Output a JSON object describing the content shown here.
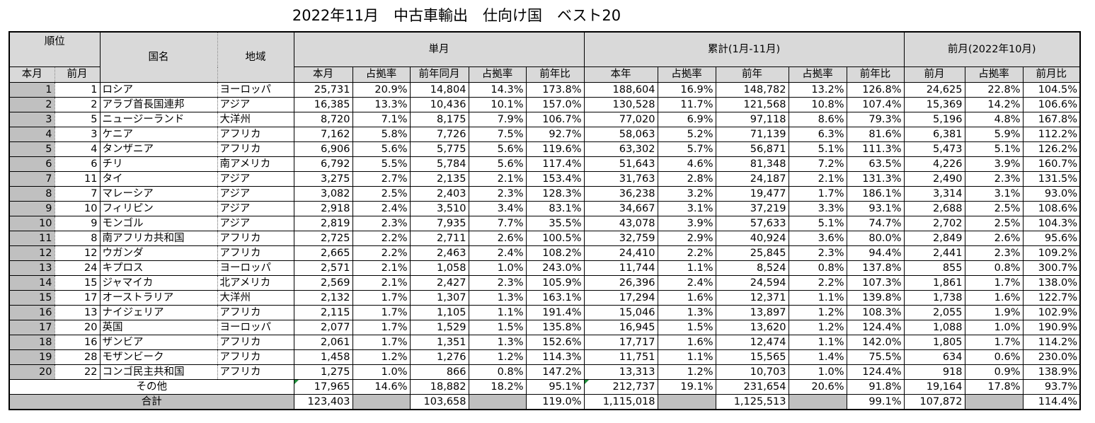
{
  "title": "2022年11月　中古車輸出　仕向け国　ベスト20",
  "header": {
    "rank": "順位",
    "country": "国名",
    "region": "地域",
    "monthly": "単月",
    "cumulative": "累計(1月-11月)",
    "prev_month": "前月(2022年10月)",
    "rank_cur": "本月",
    "rank_prev": "前月",
    "m_cur": "本月",
    "m_share": "占拠率",
    "m_lastyear": "前年同月",
    "m_share2": "占拠率",
    "m_yoy": "前年比",
    "c_cur": "本年",
    "c_share": "占拠率",
    "c_lastyear": "前年",
    "c_share2": "占拠率",
    "c_yoy": "前年比",
    "p_val": "前月",
    "p_share": "占拠率",
    "p_mom": "前月比"
  },
  "rows": [
    [
      "1",
      "1",
      "ロシア",
      "ヨーロッパ",
      "25,731",
      "20.9%",
      "14,804",
      "14.3%",
      "173.8%",
      "188,604",
      "16.9%",
      "148,782",
      "13.2%",
      "126.8%",
      "24,625",
      "22.8%",
      "104.5%"
    ],
    [
      "2",
      "2",
      "アラブ首長国連邦",
      "アジア",
      "16,385",
      "13.3%",
      "10,436",
      "10.1%",
      "157.0%",
      "130,528",
      "11.7%",
      "121,568",
      "10.8%",
      "107.4%",
      "15,369",
      "14.2%",
      "106.6%"
    ],
    [
      "3",
      "5",
      "ニュージーランド",
      "大洋州",
      "8,720",
      "7.1%",
      "8,175",
      "7.9%",
      "106.7%",
      "77,020",
      "6.9%",
      "97,118",
      "8.6%",
      "79.3%",
      "5,196",
      "4.8%",
      "167.8%"
    ],
    [
      "4",
      "3",
      "ケニア",
      "アフリカ",
      "7,162",
      "5.8%",
      "7,726",
      "7.5%",
      "92.7%",
      "58,063",
      "5.2%",
      "71,139",
      "6.3%",
      "81.6%",
      "6,381",
      "5.9%",
      "112.2%"
    ],
    [
      "5",
      "4",
      "タンザニア",
      "アフリカ",
      "6,906",
      "5.6%",
      "5,775",
      "5.6%",
      "119.6%",
      "63,302",
      "5.7%",
      "56,871",
      "5.1%",
      "111.3%",
      "5,473",
      "5.1%",
      "126.2%"
    ],
    [
      "6",
      "6",
      "チリ",
      "南アメリカ",
      "6,792",
      "5.5%",
      "5,784",
      "5.6%",
      "117.4%",
      "51,643",
      "4.6%",
      "81,348",
      "7.2%",
      "63.5%",
      "4,226",
      "3.9%",
      "160.7%"
    ],
    [
      "7",
      "11",
      "タイ",
      "アジア",
      "3,275",
      "2.7%",
      "2,135",
      "2.1%",
      "153.4%",
      "31,763",
      "2.8%",
      "24,187",
      "2.1%",
      "131.3%",
      "2,490",
      "2.3%",
      "131.5%"
    ],
    [
      "8",
      "7",
      "マレーシア",
      "アジア",
      "3,082",
      "2.5%",
      "2,403",
      "2.3%",
      "128.3%",
      "36,238",
      "3.2%",
      "19,477",
      "1.7%",
      "186.1%",
      "3,314",
      "3.1%",
      "93.0%"
    ],
    [
      "9",
      "10",
      "フィリピン",
      "アジア",
      "2,918",
      "2.4%",
      "3,510",
      "3.4%",
      "83.1%",
      "34,667",
      "3.1%",
      "37,219",
      "3.3%",
      "93.1%",
      "2,688",
      "2.5%",
      "108.6%"
    ],
    [
      "10",
      "9",
      "モンゴル",
      "アジア",
      "2,819",
      "2.3%",
      "7,935",
      "7.7%",
      "35.5%",
      "43,078",
      "3.9%",
      "57,633",
      "5.1%",
      "74.7%",
      "2,702",
      "2.5%",
      "104.3%"
    ],
    [
      "11",
      "8",
      "南アフリカ共和国",
      "アフリカ",
      "2,725",
      "2.2%",
      "2,711",
      "2.6%",
      "100.5%",
      "32,759",
      "2.9%",
      "40,924",
      "3.6%",
      "80.0%",
      "2,849",
      "2.6%",
      "95.6%"
    ],
    [
      "12",
      "12",
      "ウガンダ",
      "アフリカ",
      "2,665",
      "2.2%",
      "2,463",
      "2.4%",
      "108.2%",
      "24,410",
      "2.2%",
      "25,845",
      "2.3%",
      "94.4%",
      "2,441",
      "2.3%",
      "109.2%"
    ],
    [
      "13",
      "24",
      "キプロス",
      "ヨーロッパ",
      "2,571",
      "2.1%",
      "1,058",
      "1.0%",
      "243.0%",
      "11,744",
      "1.1%",
      "8,524",
      "0.8%",
      "137.8%",
      "855",
      "0.8%",
      "300.7%"
    ],
    [
      "14",
      "15",
      "ジャマイカ",
      "北アメリカ",
      "2,569",
      "2.1%",
      "2,427",
      "2.3%",
      "105.9%",
      "26,396",
      "2.4%",
      "24,594",
      "2.2%",
      "107.3%",
      "1,861",
      "1.7%",
      "138.0%"
    ],
    [
      "15",
      "17",
      "オーストラリア",
      "大洋州",
      "2,132",
      "1.7%",
      "1,307",
      "1.3%",
      "163.1%",
      "17,294",
      "1.6%",
      "12,371",
      "1.1%",
      "139.8%",
      "1,738",
      "1.6%",
      "122.7%"
    ],
    [
      "16",
      "13",
      "ナイジェリア",
      "アフリカ",
      "2,115",
      "1.7%",
      "1,105",
      "1.1%",
      "191.4%",
      "15,046",
      "1.3%",
      "13,897",
      "1.2%",
      "108.3%",
      "2,055",
      "1.9%",
      "102.9%"
    ],
    [
      "17",
      "20",
      "英国",
      "ヨーロッパ",
      "2,077",
      "1.7%",
      "1,529",
      "1.5%",
      "135.8%",
      "16,945",
      "1.5%",
      "13,620",
      "1.2%",
      "124.4%",
      "1,088",
      "1.0%",
      "190.9%"
    ],
    [
      "18",
      "16",
      "ザンビア",
      "アフリカ",
      "2,061",
      "1.7%",
      "1,351",
      "1.3%",
      "152.6%",
      "17,717",
      "1.6%",
      "12,474",
      "1.1%",
      "142.0%",
      "1,805",
      "1.7%",
      "114.2%"
    ],
    [
      "19",
      "28",
      "モザンビーク",
      "アフリカ",
      "1,458",
      "1.2%",
      "1,276",
      "1.2%",
      "114.3%",
      "11,751",
      "1.1%",
      "15,565",
      "1.4%",
      "75.5%",
      "634",
      "0.6%",
      "230.0%"
    ],
    [
      "20",
      "22",
      "コンゴ民主共和国",
      "アフリカ",
      "1,275",
      "1.0%",
      "866",
      "0.8%",
      "147.2%",
      "13,313",
      "1.2%",
      "10,703",
      "1.0%",
      "124.4%",
      "918",
      "0.9%",
      "138.9%"
    ]
  ],
  "others": {
    "label": "その他",
    "values": [
      "17,965",
      "14.6%",
      "18,882",
      "18.2%",
      "95.1%",
      "212,737",
      "19.1%",
      "231,654",
      "20.6%",
      "91.8%",
      "19,164",
      "17.8%",
      "93.7%"
    ]
  },
  "total": {
    "label": "合計",
    "values": [
      "123,403",
      "",
      "103,658",
      "",
      "119.0%",
      "1,115,018",
      "",
      "1,125,513",
      "",
      "99.1%",
      "107,872",
      "",
      "114.4%"
    ]
  },
  "colors": {
    "header_bg": "#d9d9d9",
    "total_bg": "#c0c0c0",
    "comment_flag": "#1f8f3a"
  }
}
